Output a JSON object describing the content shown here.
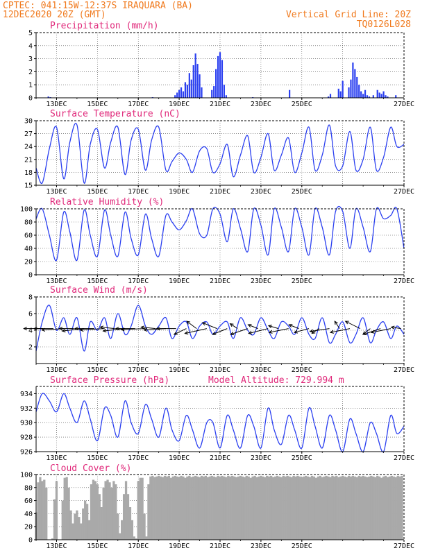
{
  "header": {
    "line1": "CPTEC:   041:15W-12:37S   IRAQUARA (BA)",
    "line2": "12DEC2020 20Z (GMT)",
    "right1": "Vertical Grid Line: 20Z",
    "right2": "TQ0126L028"
  },
  "colors": {
    "series": "#2a3ff0",
    "cloud": "#a9a9a9",
    "header": "#f07a1e",
    "title": "#e0287a"
  },
  "chart_data": [
    {
      "type": "bar",
      "title": "Precipitation (mm/h)",
      "ylim": [
        0,
        5
      ],
      "yticks": [
        0,
        1,
        2,
        3,
        4,
        5
      ],
      "xticks": [
        "13DEC",
        "15DEC",
        "17DEC",
        "19DEC",
        "21DEC",
        "23DEC",
        "25DEC",
        "27DEC"
      ],
      "x_unit": "days since 12DEC 20Z",
      "x": [
        0.6,
        0.7,
        5.7,
        6.8,
        6.9,
        7.0,
        7.1,
        7.2,
        7.3,
        7.4,
        7.5,
        7.6,
        7.7,
        7.8,
        7.9,
        8.0,
        8.1,
        8.6,
        8.7,
        8.8,
        8.9,
        9.0,
        9.1,
        9.2,
        9.3,
        10.6,
        12.4,
        14.3,
        14.4,
        14.8,
        14.9,
        15.0,
        15.3,
        15.4,
        15.5,
        15.6,
        15.7,
        15.8,
        15.9,
        16.0,
        16.1,
        16.2,
        16.3,
        16.5,
        16.7,
        16.8,
        16.9,
        17.0,
        17.1,
        17.2,
        17.6
      ],
      "values": [
        0.1,
        0.05,
        0.05,
        0.2,
        0.4,
        0.6,
        0.8,
        0.5,
        1.2,
        1.0,
        1.9,
        1.4,
        2.5,
        3.4,
        2.6,
        1.8,
        0.8,
        0.6,
        0.9,
        2.2,
        3.2,
        3.5,
        2.9,
        1.0,
        0.2,
        0.05,
        0.6,
        0.1,
        0.3,
        0.7,
        0.5,
        1.3,
        0.8,
        1.4,
        2.7,
        2.2,
        1.6,
        1.0,
        0.5,
        0.3,
        0.6,
        0.2,
        0.1,
        0.2,
        0.6,
        0.4,
        0.3,
        0.5,
        0.2,
        0.1,
        0.2
      ]
    },
    {
      "type": "line",
      "title": "Surface Temperature (nC)",
      "ylim": [
        15,
        30
      ],
      "yticks": [
        15,
        18,
        21,
        24,
        27,
        30
      ],
      "xticks": [
        "13DEC",
        "15DEC",
        "17DEC",
        "19DEC",
        "21DEC",
        "23DEC",
        "25DEC",
        "27DEC"
      ],
      "x_unit": "days since 12DEC 20Z",
      "x": [
        0,
        0.3,
        0.65,
        1.0,
        1.35,
        1.65,
        2.0,
        2.35,
        2.65,
        3.0,
        3.35,
        3.65,
        4.0,
        4.35,
        4.65,
        5.0,
        5.35,
        5.65,
        6.0,
        6.35,
        6.65,
        7.0,
        7.35,
        7.65,
        8.0,
        8.35,
        8.65,
        9.0,
        9.35,
        9.65,
        10.0,
        10.35,
        10.65,
        11.0,
        11.35,
        11.65,
        12.0,
        12.35,
        12.65,
        13.0,
        13.35,
        13.65,
        14.0,
        14.35,
        14.65,
        15.0,
        15.35,
        15.65,
        16.0,
        16.35,
        16.65,
        17.0,
        17.35,
        17.65,
        18.0
      ],
      "values": [
        19,
        15.5,
        23.5,
        28.5,
        16.5,
        25,
        29,
        15.5,
        24.5,
        28,
        19,
        25,
        28.5,
        17.5,
        25.5,
        28,
        18.5,
        25.5,
        28.5,
        18.5,
        20.5,
        22.5,
        21,
        18,
        23,
        23.5,
        18,
        20,
        24.5,
        17,
        22,
        26.5,
        18,
        21.5,
        27,
        18.5,
        22,
        26,
        18,
        22.5,
        28.5,
        18.5,
        22,
        29,
        19.5,
        19.5,
        27.5,
        18.5,
        21,
        28.5,
        18.5,
        21.5,
        28.5,
        24,
        24.5
      ]
    },
    {
      "type": "line",
      "title": "Relative Humidity (%)",
      "ylim": [
        0,
        100
      ],
      "yticks": [
        0,
        20,
        40,
        60,
        80,
        100
      ],
      "xticks": [
        "13DEC",
        "15DEC",
        "17DEC",
        "19DEC",
        "21DEC",
        "23DEC",
        "25DEC",
        "27DEC"
      ],
      "x_unit": "days since 12DEC 20Z",
      "x": [
        0,
        0.3,
        0.65,
        1.0,
        1.35,
        1.65,
        2.0,
        2.35,
        2.65,
        3.0,
        3.35,
        3.65,
        4.0,
        4.35,
        4.65,
        5.0,
        5.35,
        5.65,
        6.0,
        6.35,
        6.65,
        7.0,
        7.35,
        7.65,
        8.0,
        8.35,
        8.65,
        9.0,
        9.35,
        9.65,
        10.0,
        10.35,
        10.65,
        11.0,
        11.35,
        11.65,
        12.0,
        12.35,
        12.65,
        13.0,
        13.35,
        13.65,
        14.0,
        14.35,
        14.65,
        15.0,
        15.35,
        15.65,
        16.0,
        16.35,
        16.65,
        17.0,
        17.35,
        17.65,
        18.0
      ],
      "values": [
        85,
        100,
        60,
        22,
        95,
        65,
        22,
        98,
        60,
        28,
        98,
        60,
        28,
        95,
        55,
        30,
        92,
        55,
        28,
        90,
        80,
        68,
        82,
        100,
        62,
        60,
        100,
        92,
        50,
        100,
        70,
        35,
        100,
        75,
        30,
        100,
        72,
        35,
        100,
        72,
        30,
        100,
        72,
        30,
        96,
        96,
        40,
        100,
        72,
        35,
        100,
        85,
        90,
        100,
        40
      ]
    },
    {
      "type": "line",
      "title": "Surface Wind (m/s)",
      "ylim": [
        0,
        8
      ],
      "yticks": [
        2,
        4,
        6,
        8
      ],
      "xticks": [
        "13DEC",
        "15DEC",
        "17DEC",
        "19DEC",
        "21DEC",
        "23DEC",
        "25DEC",
        "27DEC"
      ],
      "x_unit": "days since 12DEC 20Z",
      "x": [
        0,
        0.3,
        0.65,
        1.0,
        1.35,
        1.65,
        2.0,
        2.35,
        2.65,
        3.0,
        3.35,
        3.65,
        4.0,
        4.35,
        4.65,
        5.0,
        5.35,
        5.65,
        6.0,
        6.35,
        6.65,
        7.0,
        7.35,
        7.65,
        8.0,
        8.35,
        8.65,
        9.0,
        9.35,
        9.65,
        10.0,
        10.35,
        10.65,
        11.0,
        11.35,
        11.65,
        12.0,
        12.35,
        12.65,
        13.0,
        13.35,
        13.65,
        14.0,
        14.35,
        14.65,
        15.0,
        15.35,
        15.65,
        16.0,
        16.35,
        16.65,
        17.0,
        17.35,
        17.65,
        18.0
      ],
      "values": [
        1.5,
        5,
        7,
        4,
        5.5,
        3.5,
        5.5,
        1.5,
        5,
        4,
        5.5,
        3,
        6,
        3.5,
        4.5,
        7,
        4.5,
        3.5,
        4.5,
        5.5,
        3,
        4.5,
        5,
        3,
        4.5,
        5,
        3.5,
        4.5,
        5,
        3,
        5.5,
        4,
        3.5,
        5.5,
        4,
        3,
        5,
        4.5,
        3.5,
        5.5,
        3.5,
        3,
        5.5,
        2.5,
        3.5,
        5,
        2.5,
        3.5,
        5.5,
        2.5,
        4,
        5,
        3,
        4.5,
        3.5
      ]
    },
    {
      "type": "line",
      "title": "Surface Pressure (hPa)",
      "annotation": "Model Altitude: 729.994 m",
      "ylim": [
        926,
        935
      ],
      "yticks": [
        926,
        928,
        930,
        932,
        934
      ],
      "xticks": [
        "13DEC",
        "15DEC",
        "17DEC",
        "19DEC",
        "21DEC",
        "23DEC",
        "25DEC",
        "27DEC"
      ],
      "x_unit": "days since 12DEC 20Z",
      "x": [
        0,
        0.3,
        0.65,
        1.0,
        1.35,
        1.65,
        2.0,
        2.35,
        2.65,
        3.0,
        3.35,
        3.65,
        4.0,
        4.35,
        4.65,
        5.0,
        5.35,
        5.65,
        6.0,
        6.35,
        6.65,
        7.0,
        7.35,
        7.65,
        8.0,
        8.35,
        8.65,
        9.0,
        9.35,
        9.65,
        10.0,
        10.35,
        10.65,
        11.0,
        11.35,
        11.65,
        12.0,
        12.35,
        12.65,
        13.0,
        13.35,
        13.65,
        14.0,
        14.35,
        14.65,
        15.0,
        15.35,
        15.65,
        16.0,
        16.35,
        16.65,
        17.0,
        17.35,
        17.65,
        18.0
      ],
      "values": [
        931.5,
        934,
        933,
        931.5,
        934,
        932,
        930,
        933,
        930.5,
        927.5,
        932,
        931,
        928,
        933,
        930,
        928.5,
        932.5,
        930.5,
        928,
        932,
        929,
        927.5,
        931,
        929,
        926.5,
        930,
        930,
        926.5,
        931,
        929,
        926.5,
        931,
        929.5,
        926.5,
        932,
        929,
        927,
        931,
        929,
        926.5,
        932,
        929.5,
        926.5,
        931,
        929,
        926,
        930.5,
        928.5,
        926,
        930,
        928.5,
        926,
        931,
        928.5,
        929.5
      ]
    },
    {
      "type": "bar",
      "title": "Cloud Cover (%)",
      "ylim": [
        0,
        100
      ],
      "yticks": [
        0,
        20,
        40,
        60,
        80,
        100
      ],
      "xticks": [
        "13DEC",
        "15DEC",
        "17DEC",
        "19DEC",
        "21DEC",
        "23DEC",
        "25DEC",
        "27DEC"
      ],
      "x_unit": "days since 12DEC 20Z",
      "x": [
        0.0,
        0.1,
        0.2,
        0.3,
        0.4,
        0.5,
        0.6,
        0.7,
        0.8,
        0.9,
        1.0,
        1.1,
        1.2,
        1.3,
        1.4,
        1.5,
        1.6,
        1.7,
        1.8,
        1.9,
        2.0,
        2.1,
        2.2,
        2.3,
        2.4,
        2.5,
        2.6,
        2.7,
        2.8,
        2.9,
        3.0,
        3.1,
        3.2,
        3.3,
        3.4,
        3.5,
        3.6,
        3.7,
        3.8,
        3.9,
        4.0,
        4.1,
        4.2,
        4.3,
        4.4,
        4.5,
        4.6,
        4.7,
        4.8,
        4.9,
        5.0,
        5.1,
        5.2,
        5.3,
        5.4,
        5.5,
        5.6,
        5.7,
        5.8,
        5.9,
        6.0,
        6.1,
        6.2,
        6.3,
        6.4,
        6.5,
        6.6,
        6.7,
        6.8,
        6.9,
        7.0,
        7.1,
        7.2,
        7.3,
        7.4,
        7.5,
        7.6,
        7.7,
        7.8,
        7.9,
        8.0,
        8.1,
        8.2,
        8.3,
        8.4,
        8.5,
        8.6,
        8.7,
        8.8,
        8.9,
        9.0,
        9.1,
        9.2,
        9.3,
        9.4,
        9.5,
        9.6,
        9.7,
        9.8,
        9.9,
        10.0,
        10.1,
        10.2,
        10.3,
        10.4,
        10.5,
        10.6,
        10.7,
        10.8,
        10.9,
        11.0,
        11.1,
        11.2,
        11.3,
        11.4,
        11.5,
        11.6,
        11.7,
        11.8,
        11.9,
        12.0,
        12.1,
        12.2,
        12.3,
        12.4,
        12.5,
        12.6,
        12.7,
        12.8,
        12.9,
        13.0,
        13.1,
        13.2,
        13.3,
        13.4,
        13.5,
        13.6,
        13.7,
        13.8,
        13.9,
        14.0,
        14.1,
        14.2,
        14.3,
        14.4,
        14.5,
        14.6,
        14.7,
        14.8,
        14.9,
        15.0,
        15.1,
        15.2,
        15.3,
        15.4,
        15.5,
        15.6,
        15.7,
        15.8,
        15.9,
        16.0,
        16.1,
        16.2,
        16.3,
        16.4,
        16.5,
        16.6,
        16.7,
        16.8,
        16.9,
        17.0,
        17.1,
        17.2,
        17.3,
        17.4,
        17.5,
        17.6,
        17.7,
        17.8,
        17.9
      ],
      "values": [
        42,
        88,
        96,
        90,
        92,
        80,
        0,
        0,
        2,
        62,
        90,
        0,
        0,
        60,
        95,
        96,
        80,
        45,
        25,
        40,
        45,
        35,
        25,
        48,
        60,
        55,
        30,
        85,
        92,
        90,
        85,
        70,
        50,
        80,
        90,
        92,
        88,
        80,
        90,
        85,
        40,
        10,
        30,
        70,
        90,
        70,
        50,
        30,
        5,
        2,
        90,
        95,
        95,
        40,
        5,
        85,
        97,
        98,
        96,
        97,
        98,
        97,
        96,
        98,
        97,
        98,
        95,
        97,
        98,
        97,
        96,
        98,
        97,
        95,
        97,
        98,
        96,
        97,
        98,
        97,
        96,
        98,
        97,
        98,
        96,
        97,
        98,
        97,
        96,
        98,
        97,
        98,
        97,
        96,
        98,
        97,
        98,
        97,
        96,
        97,
        98,
        97,
        96,
        98,
        97,
        95,
        97,
        98,
        96,
        97,
        98,
        97,
        96,
        98,
        97,
        98,
        96,
        97,
        98,
        97,
        96,
        98,
        97,
        98,
        97,
        96,
        98,
        97,
        98,
        97,
        96,
        97,
        98,
        97,
        96,
        98,
        97,
        95,
        97,
        98,
        96,
        97,
        98,
        97,
        96,
        98,
        97,
        98,
        96,
        97,
        98,
        97,
        96,
        98,
        97,
        98,
        97,
        96,
        98,
        97,
        98,
        97,
        96,
        97,
        98,
        97,
        96,
        98,
        97,
        95,
        97,
        98,
        96,
        97,
        98,
        97,
        96,
        98,
        97,
        98
      ]
    }
  ],
  "wind_vectors": {
    "x_unit": "days since 12DEC 20Z",
    "x": [
      0.35,
      0.85,
      1.35,
      1.85,
      2.35,
      2.85,
      3.35,
      3.85,
      4.35,
      4.85,
      5.35,
      5.85,
      6.35,
      6.85,
      7.35,
      7.85,
      8.35,
      8.85,
      9.35,
      9.85,
      10.35,
      10.85,
      11.35,
      11.85,
      12.35,
      12.85,
      13.35,
      13.85,
      14.35,
      14.85,
      15.35,
      15.85,
      16.35,
      16.85,
      17.35,
      17.85
    ],
    "u": [
      -4,
      -4,
      -4.5,
      -3,
      -4.5,
      -4,
      -5,
      -3,
      -4.5,
      -4,
      -5,
      -3,
      -4.5,
      -4,
      -2.5,
      -2,
      -4.5,
      -3,
      -3,
      -1.5,
      -3.5,
      -2,
      -4,
      -2,
      -4,
      -2,
      -3,
      -1.5,
      -4,
      -1,
      -4,
      -3,
      -1.5,
      -3.5,
      -4,
      -2
    ],
    "v": [
      0,
      0,
      -0.3,
      0,
      -0.5,
      0,
      -0.3,
      0.3,
      -0.5,
      0,
      -0.2,
      0.3,
      -0.3,
      0,
      -1.2,
      1.5,
      -1.0,
      1.2,
      -1.2,
      1.0,
      -1.2,
      0.8,
      -1.0,
      0.6,
      -0.8,
      0.8,
      -0.8,
      -1.0,
      -0.6,
      1.5,
      -0.8,
      1.5,
      -1.2,
      -1.2,
      -0.8,
      0.3
    ]
  }
}
